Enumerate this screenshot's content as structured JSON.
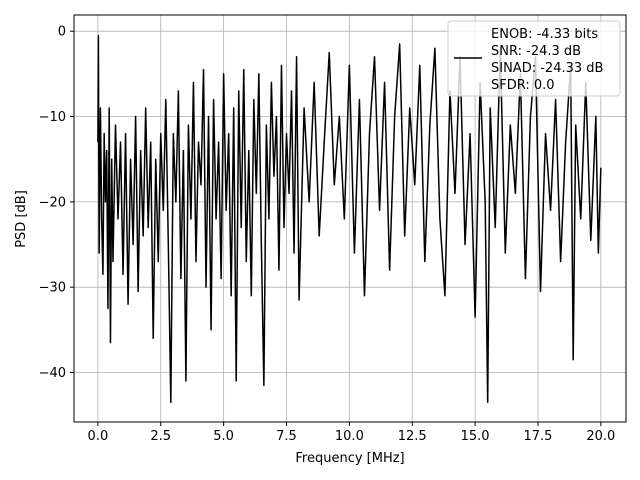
{
  "chart_data": {
    "type": "line",
    "title": "",
    "xlabel": "Frequency [MHz]",
    "ylabel": "PSD [dB]",
    "xlim": [
      -0.95,
      21.0
    ],
    "ylim": [
      -45.8,
      1.9
    ],
    "xticks": [
      0.0,
      2.5,
      5.0,
      7.5,
      10.0,
      12.5,
      15.0,
      17.5,
      20.0
    ],
    "xtick_labels": [
      "0.0",
      "2.5",
      "5.0",
      "7.5",
      "10.0",
      "12.5",
      "15.0",
      "17.5",
      "20.0"
    ],
    "yticks": [
      0,
      -10,
      -20,
      -30,
      -40
    ],
    "ytick_labels": [
      "0",
      "−10",
      "−20",
      "−30",
      "−40"
    ],
    "grid": true,
    "legend_position": "top-right",
    "legend": [
      "ENOB: -4.33 bits",
      "SNR: -24.3 dB",
      "SINAD: -24.33 dB",
      "SFDR: 0.0"
    ],
    "series": [
      {
        "color": "#000000",
        "description": "dense noise-like PSD trace, 0 to 20 MHz",
        "points": [
          [
            0.0,
            -13
          ],
          [
            0.02,
            -0.5
          ],
          [
            0.05,
            -26
          ],
          [
            0.1,
            -9
          ],
          [
            0.15,
            -22
          ],
          [
            0.2,
            -28.5
          ],
          [
            0.25,
            -12
          ],
          [
            0.3,
            -20
          ],
          [
            0.35,
            -14
          ],
          [
            0.4,
            -32.5
          ],
          [
            0.45,
            -9
          ],
          [
            0.5,
            -36.5
          ],
          [
            0.55,
            -15
          ],
          [
            0.6,
            -27
          ],
          [
            0.7,
            -11
          ],
          [
            0.8,
            -22
          ],
          [
            0.9,
            -13
          ],
          [
            1.0,
            -28.5
          ],
          [
            1.1,
            -12
          ],
          [
            1.2,
            -32
          ],
          [
            1.3,
            -15
          ],
          [
            1.4,
            -25
          ],
          [
            1.5,
            -10
          ],
          [
            1.6,
            -30.5
          ],
          [
            1.7,
            -14
          ],
          [
            1.8,
            -24
          ],
          [
            1.9,
            -9
          ],
          [
            2.0,
            -23
          ],
          [
            2.1,
            -13
          ],
          [
            2.2,
            -36
          ],
          [
            2.3,
            -15
          ],
          [
            2.4,
            -27
          ],
          [
            2.5,
            -12
          ],
          [
            2.6,
            -21
          ],
          [
            2.7,
            -8
          ],
          [
            2.8,
            -25
          ],
          [
            2.9,
            -43.5
          ],
          [
            3.0,
            -12
          ],
          [
            3.1,
            -20
          ],
          [
            3.2,
            -7
          ],
          [
            3.3,
            -29
          ],
          [
            3.4,
            -14
          ],
          [
            3.5,
            -41
          ],
          [
            3.6,
            -11
          ],
          [
            3.7,
            -22
          ],
          [
            3.8,
            -6
          ],
          [
            3.9,
            -27
          ],
          [
            4.0,
            -13
          ],
          [
            4.1,
            -18
          ],
          [
            4.2,
            -4.5
          ],
          [
            4.3,
            -30
          ],
          [
            4.4,
            -10
          ],
          [
            4.5,
            -35
          ],
          [
            4.6,
            -8
          ],
          [
            4.7,
            -22
          ],
          [
            4.8,
            -13
          ],
          [
            4.9,
            -29
          ],
          [
            5.0,
            -5
          ],
          [
            5.1,
            -21
          ],
          [
            5.2,
            -12
          ],
          [
            5.3,
            -31
          ],
          [
            5.4,
            -9
          ],
          [
            5.5,
            -41
          ],
          [
            5.6,
            -7
          ],
          [
            5.7,
            -23
          ],
          [
            5.8,
            -4.5
          ],
          [
            5.9,
            -27
          ],
          [
            6.0,
            -14
          ],
          [
            6.1,
            -31
          ],
          [
            6.2,
            -8
          ],
          [
            6.3,
            -19
          ],
          [
            6.4,
            -5
          ],
          [
            6.5,
            -25
          ],
          [
            6.6,
            -41.5
          ],
          [
            6.7,
            -11
          ],
          [
            6.8,
            -22
          ],
          [
            6.9,
            -6
          ],
          [
            7.0,
            -17
          ],
          [
            7.1,
            -10
          ],
          [
            7.2,
            -28
          ],
          [
            7.3,
            -4
          ],
          [
            7.4,
            -23
          ],
          [
            7.5,
            -12
          ],
          [
            7.6,
            -19
          ],
          [
            7.7,
            -7
          ],
          [
            7.8,
            -26
          ],
          [
            7.9,
            -3
          ],
          [
            8.0,
            -31.5
          ],
          [
            8.2,
            -9
          ],
          [
            8.4,
            -20
          ],
          [
            8.6,
            -6
          ],
          [
            8.8,
            -24
          ],
          [
            9.0,
            -13
          ],
          [
            9.2,
            -2.5
          ],
          [
            9.4,
            -18
          ],
          [
            9.6,
            -10
          ],
          [
            9.8,
            -22
          ],
          [
            10.0,
            -4
          ],
          [
            10.2,
            -26
          ],
          [
            10.4,
            -8
          ],
          [
            10.6,
            -31
          ],
          [
            10.8,
            -12
          ],
          [
            11.0,
            -3
          ],
          [
            11.2,
            -21
          ],
          [
            11.4,
            -6
          ],
          [
            11.6,
            -28
          ],
          [
            11.8,
            -10
          ],
          [
            12.0,
            -1.5
          ],
          [
            12.2,
            -24
          ],
          [
            12.4,
            -9
          ],
          [
            12.6,
            -18
          ],
          [
            12.8,
            -4
          ],
          [
            13.0,
            -27
          ],
          [
            13.2,
            -11
          ],
          [
            13.4,
            -2
          ],
          [
            13.6,
            -22
          ],
          [
            13.8,
            -31
          ],
          [
            14.0,
            -7
          ],
          [
            14.2,
            -19
          ],
          [
            14.4,
            -3
          ],
          [
            14.6,
            -25
          ],
          [
            14.8,
            -12
          ],
          [
            15.0,
            -33.5
          ],
          [
            15.2,
            -6
          ],
          [
            15.4,
            -20
          ],
          [
            15.5,
            -43.5
          ],
          [
            15.6,
            -9
          ],
          [
            15.8,
            -23
          ],
          [
            16.0,
            -2
          ],
          [
            16.2,
            -26
          ],
          [
            16.4,
            -11
          ],
          [
            16.6,
            -19
          ],
          [
            16.8,
            -5
          ],
          [
            17.0,
            -29
          ],
          [
            17.2,
            -10
          ],
          [
            17.4,
            -3
          ],
          [
            17.6,
            -30.5
          ],
          [
            17.8,
            -12
          ],
          [
            18.0,
            -21
          ],
          [
            18.2,
            -8
          ],
          [
            18.4,
            -27
          ],
          [
            18.6,
            -13
          ],
          [
            18.8,
            -4
          ],
          [
            18.9,
            -38.5
          ],
          [
            19.0,
            -11
          ],
          [
            19.2,
            -22
          ],
          [
            19.4,
            -6
          ],
          [
            19.6,
            -24.5
          ],
          [
            19.8,
            -10
          ],
          [
            19.9,
            -26
          ],
          [
            20.0,
            -16
          ]
        ]
      }
    ]
  }
}
